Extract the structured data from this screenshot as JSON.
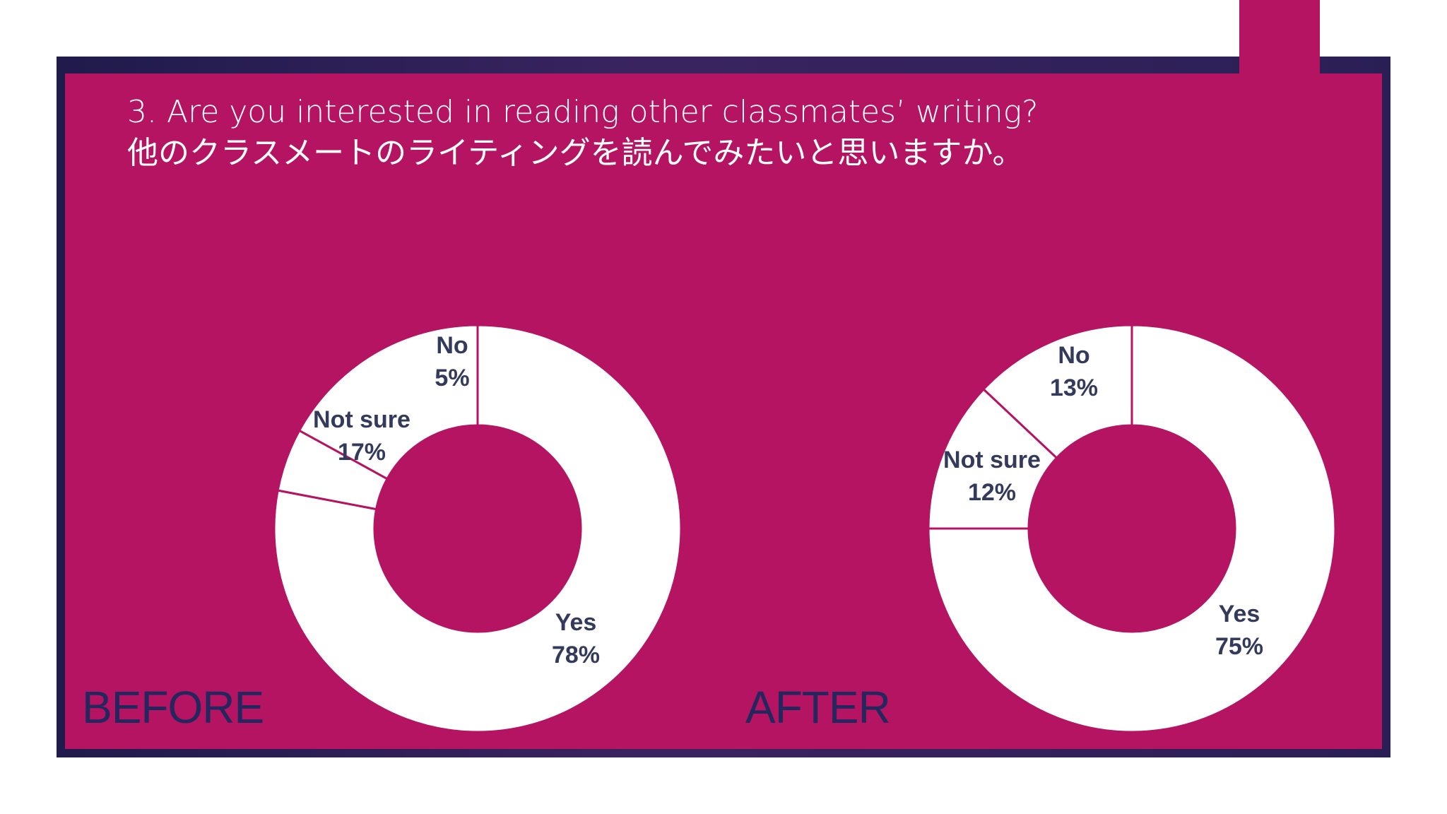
{
  "title": {
    "line1": "3. Are you interested in reading other classmates’ writing?",
    "line2": "他のクラスメートのライティングを読んでみたいと思いますか。"
  },
  "colors": {
    "background": "#b41461",
    "slice_fill": "#ffffff",
    "slice_border": "#b41461",
    "label_text": "#333a5c",
    "phase_text": "#24275e"
  },
  "chart_data": [
    {
      "type": "pie",
      "variant": "donut",
      "label": "BEFORE",
      "categories": [
        "Yes",
        "No",
        "Not sure"
      ],
      "values": [
        78,
        5,
        17
      ],
      "data_labels": [
        {
          "name": "Yes",
          "value": "78%"
        },
        {
          "name": "No",
          "value": "5%"
        },
        {
          "name": "Not sure",
          "value": "17%"
        }
      ]
    },
    {
      "type": "pie",
      "variant": "donut",
      "label": "AFTER",
      "categories": [
        "Yes",
        "Not sure",
        "No"
      ],
      "values": [
        75,
        12,
        13
      ],
      "data_labels": [
        {
          "name": "Yes",
          "value": "75%"
        },
        {
          "name": "Not sure",
          "value": "12%"
        },
        {
          "name": "No",
          "value": "13%"
        }
      ]
    }
  ]
}
